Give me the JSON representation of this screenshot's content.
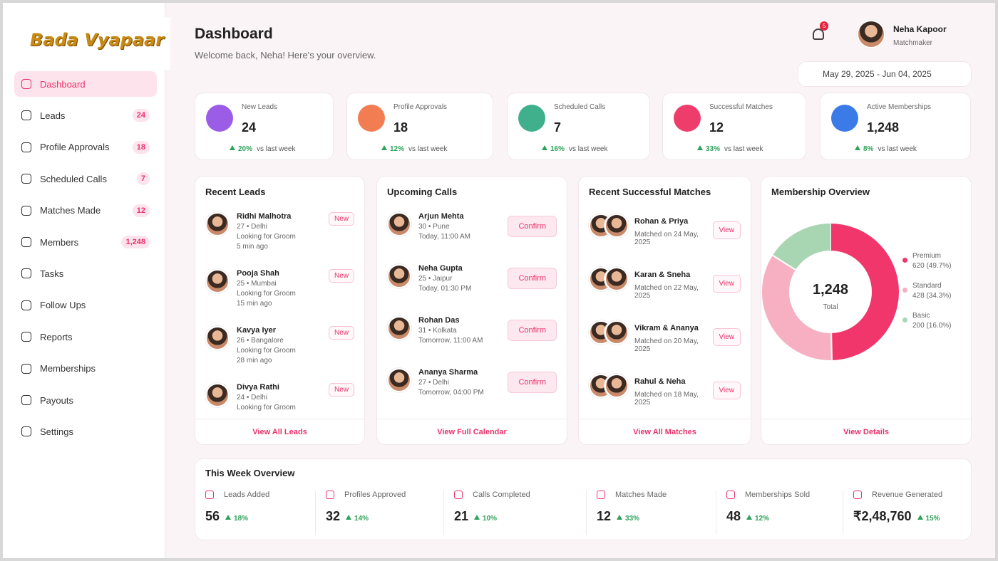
{
  "logo": "Bada Vyapaar",
  "nav": [
    {
      "label": "Dashboard"
    },
    {
      "label": "Leads",
      "badge": "24"
    },
    {
      "label": "Profile Approvals",
      "badge": "18"
    },
    {
      "label": "Scheduled Calls",
      "badge": "7"
    },
    {
      "label": "Matches Made",
      "badge": "12"
    },
    {
      "label": "Members",
      "badge": "1,248"
    },
    {
      "label": "Tasks"
    },
    {
      "label": "Follow Ups"
    },
    {
      "label": "Reports"
    },
    {
      "label": "Memberships"
    },
    {
      "label": "Payouts"
    },
    {
      "label": "Settings"
    }
  ],
  "header": {
    "title": "Dashboard",
    "subtitle": "Welcome back, Neha! Here's your overview.",
    "notifications": "5",
    "user": {
      "name": "Neha Kapoor",
      "role": "Matchmaker"
    },
    "date_range": "May 29, 2025 - Jun 04, 2025"
  },
  "stats": [
    {
      "label": "New Leads",
      "value": "24",
      "change": "20%",
      "note": "vs last week",
      "color": "#9b5de5"
    },
    {
      "label": "Profile Approvals",
      "value": "18",
      "change": "12%",
      "note": "vs last week",
      "color": "#f27d52"
    },
    {
      "label": "Scheduled Calls",
      "value": "7",
      "change": "16%",
      "note": "vs last week",
      "color": "#3fb08b"
    },
    {
      "label": "Successful Matches",
      "value": "12",
      "change": "33%",
      "note": "vs last week",
      "color": "#ef3d6b"
    },
    {
      "label": "Active Memberships",
      "value": "1,248",
      "change": "8%",
      "note": "vs last week",
      "color": "#3b7be8"
    }
  ],
  "recent_leads": {
    "title": "Recent Leads",
    "link": "View All Leads",
    "items": [
      {
        "name": "Ridhi Malhotra",
        "meta": "27 • Delhi",
        "note": "Looking for Groom",
        "time": "5 min ago",
        "tag": "New"
      },
      {
        "name": "Pooja Shah",
        "meta": "25 • Mumbai",
        "note": "Looking for Groom",
        "time": "15 min ago",
        "tag": "New"
      },
      {
        "name": "Kavya Iyer",
        "meta": "26 • Bangalore",
        "note": "Looking for Groom",
        "time": "28 min ago",
        "tag": "New"
      },
      {
        "name": "Divya Rathi",
        "meta": "24 • Delhi",
        "note": "Looking for Groom",
        "tag": "New"
      }
    ]
  },
  "upcoming_calls": {
    "title": "Upcoming Calls",
    "link": "View Full Calendar",
    "items": [
      {
        "name": "Arjun Mehta",
        "meta": "30 • Pune",
        "time": "Today, 11:00 AM",
        "action": "Confirm"
      },
      {
        "name": "Neha Gupta",
        "meta": "25 • Jaipur",
        "time": "Today, 01:30 PM",
        "action": "Confirm"
      },
      {
        "name": "Rohan Das",
        "meta": "31 • Kolkata",
        "time": "Tomorrow, 11:00 AM",
        "action": "Confirm"
      },
      {
        "name": "Ananya Sharma",
        "meta": "27 • Delhi",
        "time": "Tomorrow, 04:00 PM",
        "action": "Confirm"
      }
    ]
  },
  "recent_matches": {
    "title": "Recent Successful Matches",
    "link": "View All Matches",
    "items": [
      {
        "names": "Rohan & Priya",
        "date": "Matched on 24 May, 2025",
        "action": "View"
      },
      {
        "names": "Karan & Sneha",
        "date": "Matched on 22 May, 2025",
        "action": "View"
      },
      {
        "names": "Vikram & Ananya",
        "date": "Matched on 20 May, 2025",
        "action": "View"
      },
      {
        "names": "Rahul & Neha",
        "date": "Matched on 18 May, 2025",
        "action": "View"
      }
    ]
  },
  "membership": {
    "title": "Membership Overview",
    "total": "1,248",
    "total_label": "Total",
    "link": "View Details",
    "segments": [
      {
        "name": "Premium",
        "value": 620,
        "label": "620 (49.7%)",
        "color": "#f0366b"
      },
      {
        "name": "Standard",
        "value": 428,
        "label": "428 (34.3%)",
        "color": "#f7b0c2"
      },
      {
        "name": "Basic",
        "value": 200,
        "label": "200 (16.0%)",
        "color": "#a9d6b2"
      }
    ]
  },
  "week_overview": {
    "title": "This Week Overview",
    "items": [
      {
        "label": "Leads Added",
        "value": "56",
        "change": "18%"
      },
      {
        "label": "Profiles Approved",
        "value": "32",
        "change": "14%"
      },
      {
        "label": "Calls Completed",
        "value": "21",
        "change": "10%"
      },
      {
        "label": "Matches Made",
        "value": "12",
        "change": "33%"
      },
      {
        "label": "Memberships Sold",
        "value": "48",
        "change": "12%"
      },
      {
        "label": "Revenue Generated",
        "value": "₹2,48,760",
        "change": "15%"
      }
    ]
  }
}
